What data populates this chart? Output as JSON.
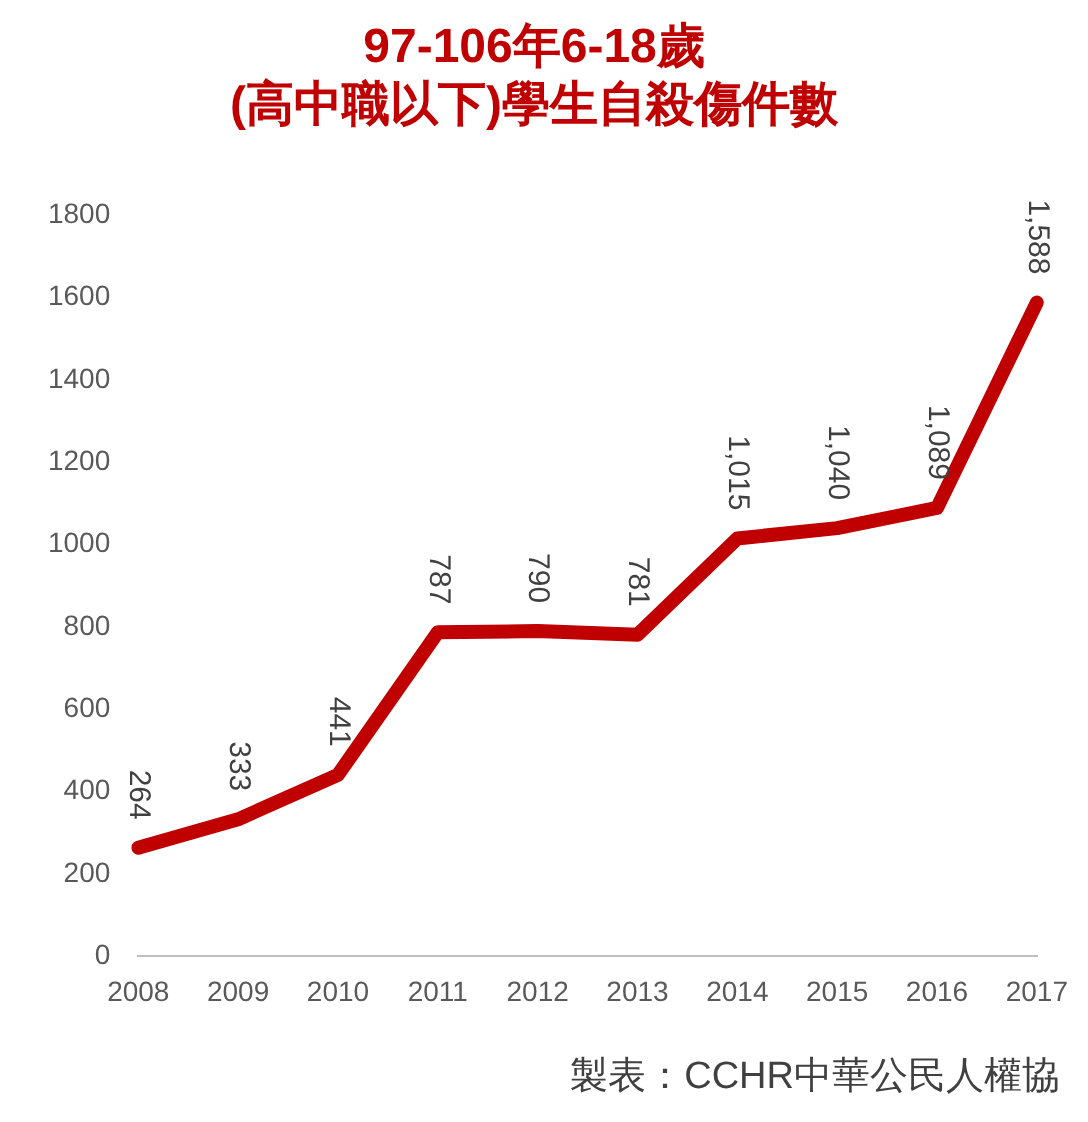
{
  "chart_data": {
    "type": "line",
    "title": [
      "97-106年6-18歲",
      "(高中職以下)學生自殺傷件數"
    ],
    "categories": [
      "2008",
      "2009",
      "2010",
      "2011",
      "2012",
      "2013",
      "2014",
      "2015",
      "2016",
      "2017"
    ],
    "series": [
      {
        "color": "#c00000",
        "values": [
          264,
          333,
          441,
          787,
          790,
          781,
          1015,
          1040,
          1089,
          1588
        ],
        "value_labels": [
          "264",
          "333",
          "441",
          "787",
          "790",
          "781",
          "1,015",
          "1,040",
          "1,089",
          "1,588"
        ]
      }
    ],
    "ylim": [
      0,
      1800
    ],
    "yticks": [
      0,
      200,
      400,
      600,
      800,
      1000,
      1200,
      1400,
      1600,
      1800
    ],
    "grid": false,
    "legend": false,
    "marker": "none",
    "line_style": "solid",
    "annotations": [
      "製表：CCHR中華公民人權協"
    ]
  }
}
